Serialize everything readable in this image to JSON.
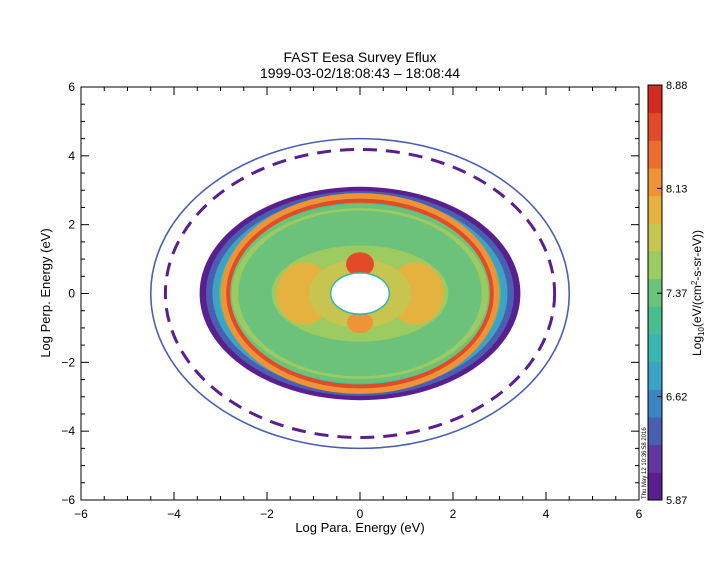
{
  "chart_data": {
    "type": "heatmap",
    "title": "FAST  Eesa Survey Eflux",
    "subtitle": "1999-03-02/18:08:43 – 18:08:44",
    "xlabel": "Log Para. Energy (eV)",
    "ylabel": "Log Perp. Energy (eV)",
    "xlim": [
      -6,
      6
    ],
    "ylim": [
      -6,
      6
    ],
    "xticks": [
      -6,
      -4,
      -2,
      0,
      2,
      4,
      6
    ],
    "yticks": [
      -6,
      -4,
      -2,
      0,
      2,
      4,
      6
    ],
    "grid": false,
    "colorbar": {
      "label_main": "Log",
      "label_sub": "10",
      "label_rest": "(eV/(cm",
      "label_sup": "2",
      "label_end": "-s-sr-eV))",
      "min": 5.87,
      "max": 8.88,
      "tick_values": [
        5.87,
        6.62,
        7.37,
        8.13,
        8.88
      ],
      "tick_labels": [
        "5.87",
        "6.62",
        "7.37",
        "8.13",
        "8.88"
      ],
      "colors": [
        "#5a1f8f",
        "#62369e",
        "#4a5fb0",
        "#3d84c4",
        "#3aa3c6",
        "#39b6b0",
        "#47bd92",
        "#6cc27a",
        "#9ccb62",
        "#c6c54f",
        "#e5b13f",
        "#ee9437",
        "#ec6d2f",
        "#e24a28",
        "#d32a22"
      ]
    },
    "rings": {
      "outer_radius": 4.5,
      "inner_radius": 0.6,
      "peak_radius": 2.7,
      "core_x_radius": 3.45,
      "core_y_radius": 3.1
    },
    "timestamp": "Thu May 12 10:36:58 2016"
  }
}
